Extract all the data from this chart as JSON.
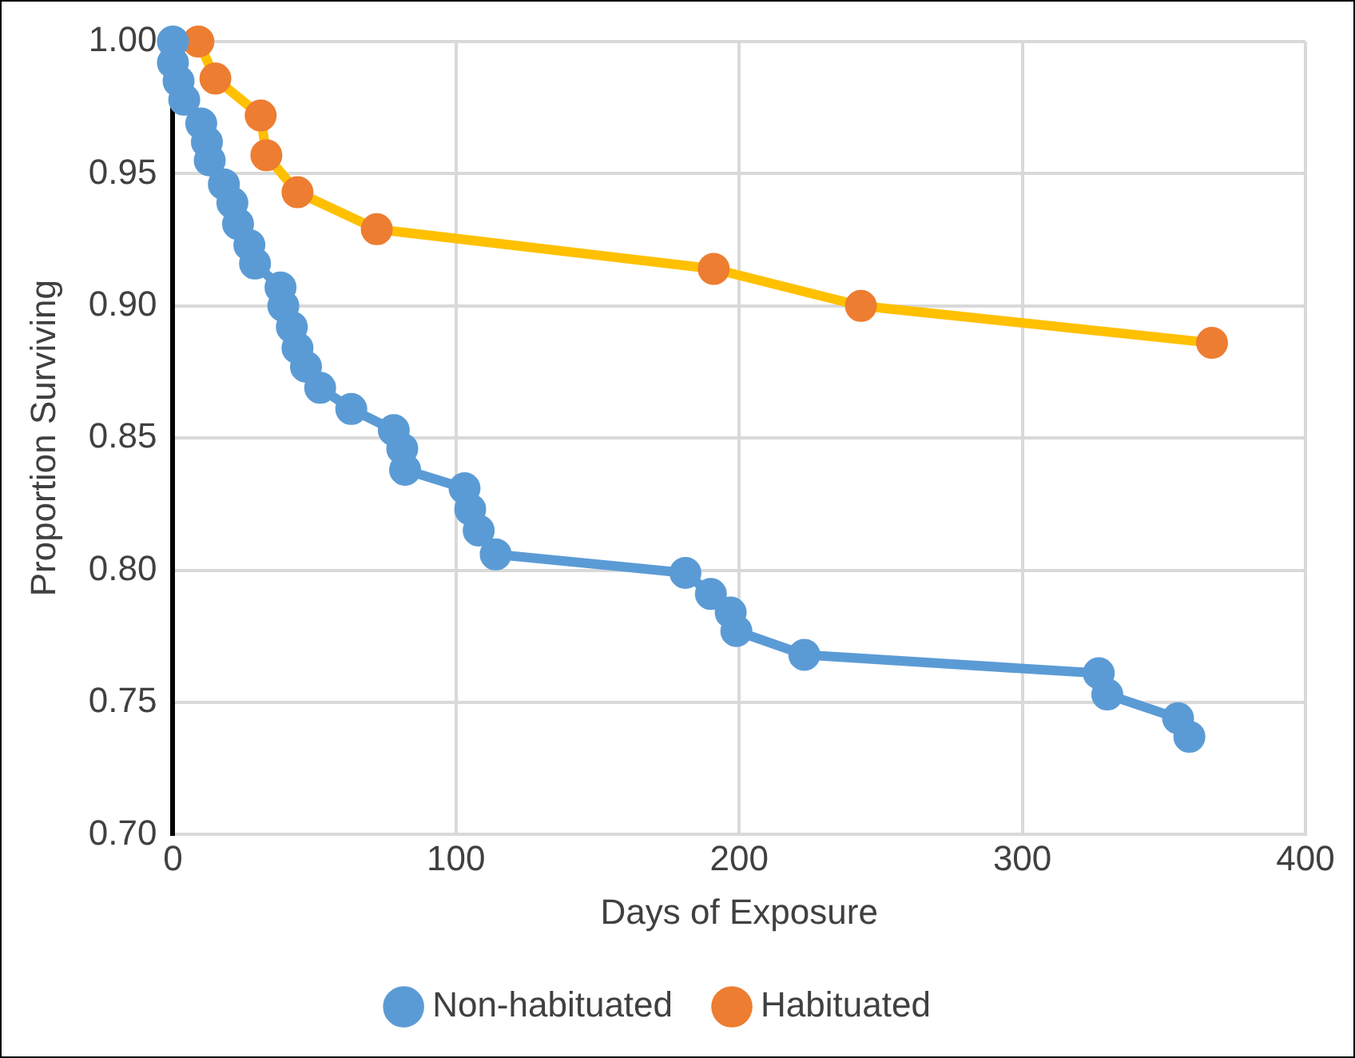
{
  "chart_data": {
    "type": "line",
    "xlabel": "Days of Exposure",
    "ylabel": "Proportion Surviving",
    "xlim": [
      0,
      400
    ],
    "xticks": [
      0,
      100,
      200,
      300,
      400
    ],
    "ylim": [
      0.7,
      1.0
    ],
    "yticks": [
      {
        "value": 0.7,
        "label": "0.70"
      },
      {
        "value": 0.75,
        "label": "0.75"
      },
      {
        "value": 0.8,
        "label": "0.80"
      },
      {
        "value": 0.85,
        "label": "0.85"
      },
      {
        "value": 0.9,
        "label": "0.90"
      },
      {
        "value": 0.95,
        "label": "0.95"
      },
      {
        "value": 1.0,
        "label": "1.00"
      }
    ],
    "grid": true,
    "legend": "bottom",
    "marker": "circle",
    "line_style": "solid",
    "series": [
      {
        "name": "Non-habituated",
        "color": "#5b9bd5",
        "x": [
          0,
          0,
          2,
          4,
          10,
          12,
          13,
          18,
          21,
          23,
          27,
          29,
          38,
          39,
          42,
          44,
          47,
          52,
          63,
          78,
          81,
          82,
          103,
          105,
          108,
          114,
          181,
          190,
          197,
          199,
          223,
          327,
          330,
          355,
          359
        ],
        "values": [
          1.0,
          0.992,
          0.985,
          0.978,
          0.969,
          0.962,
          0.955,
          0.946,
          0.939,
          0.931,
          0.923,
          0.916,
          0.907,
          0.9,
          0.892,
          0.884,
          0.877,
          0.869,
          0.861,
          0.853,
          0.846,
          0.838,
          0.831,
          0.823,
          0.815,
          0.806,
          0.799,
          0.791,
          0.784,
          0.777,
          0.768,
          0.761,
          0.753,
          0.744,
          0.737
        ]
      },
      {
        "name": "Habituated",
        "color": "#ed7d31",
        "x": [
          9,
          15,
          31,
          33,
          44,
          72,
          191,
          243,
          367
        ],
        "values": [
          1.0,
          0.986,
          0.972,
          0.957,
          0.943,
          0.929,
          0.914,
          0.9,
          0.886
        ]
      }
    ]
  }
}
